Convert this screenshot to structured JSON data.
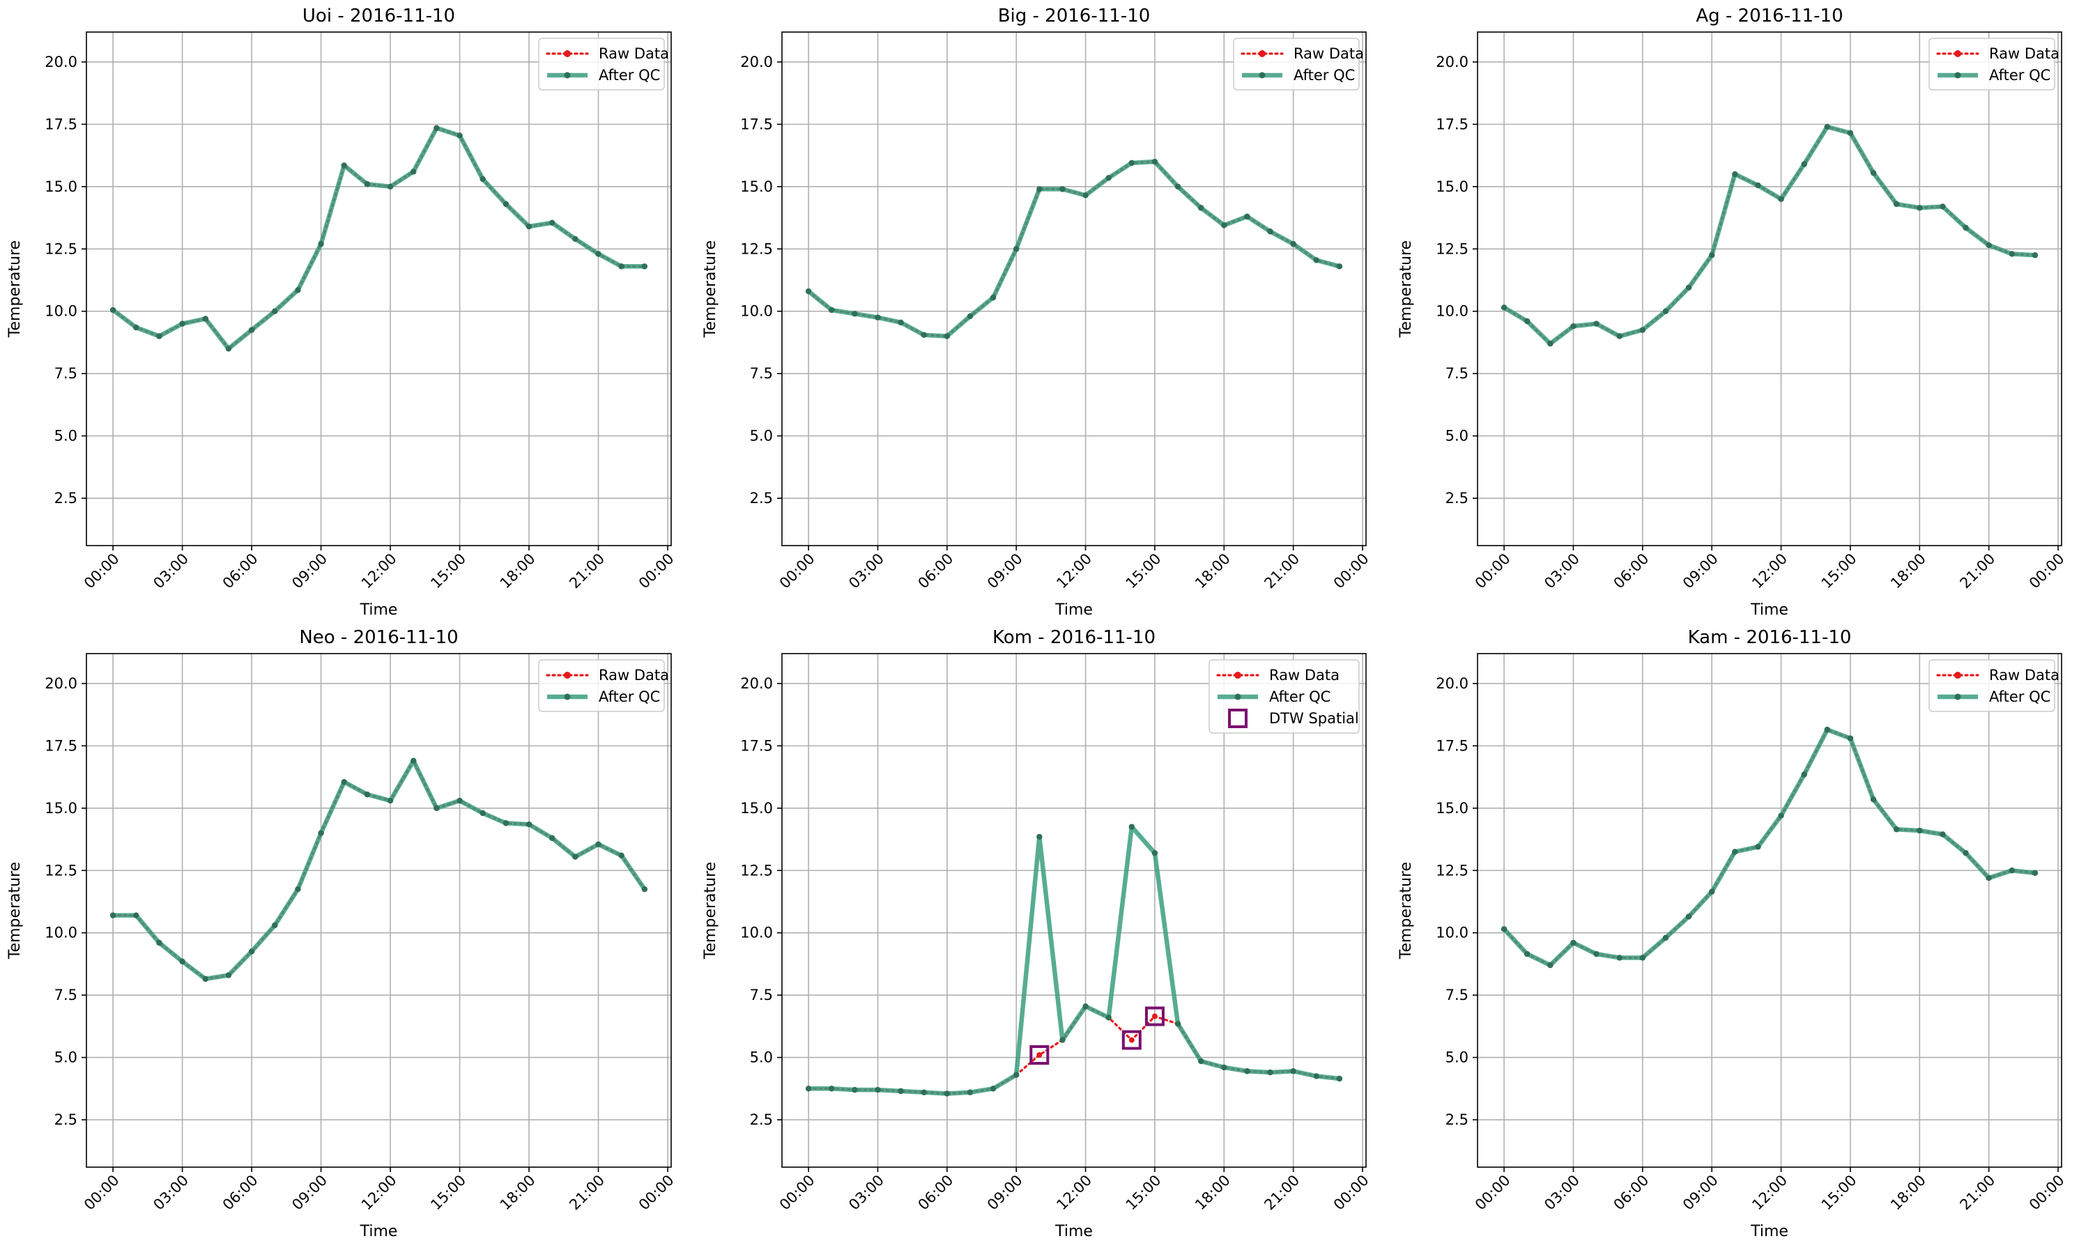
{
  "colors": {
    "raw_data": "#e41a1c",
    "after_qc": "#3a9d7f",
    "after_qc_marker": "#2f6f58",
    "dtw_spatial": "#7a0f6f",
    "grid": "#b0b0b0"
  },
  "chart_data": [
    {
      "type": "line",
      "title": "Uoi - 2016-11-10",
      "xlabel": "Time",
      "ylabel": "Temperature",
      "ylim": [
        0.6,
        21.2
      ],
      "yticks": [
        "2.5",
        "5.0",
        "7.5",
        "10.0",
        "12.5",
        "15.0",
        "17.5",
        "20.0"
      ],
      "xticks": [
        "00:00",
        "03:00",
        "06:00",
        "09:00",
        "12:00",
        "15:00",
        "18:00",
        "21:00",
        "00:00"
      ],
      "grid": true,
      "legend_position": "upper right",
      "legend": [
        "Raw Data",
        "After QC"
      ],
      "x": [
        "00:00",
        "01:00",
        "02:00",
        "03:00",
        "04:00",
        "05:00",
        "06:00",
        "07:00",
        "08:00",
        "09:00",
        "10:00",
        "11:00",
        "12:00",
        "13:00",
        "14:00",
        "15:00",
        "16:00",
        "17:00",
        "18:00",
        "19:00",
        "20:00",
        "21:00",
        "22:00",
        "23:00"
      ],
      "series": [
        {
          "name": "Raw Data",
          "values": [
            10.05,
            9.35,
            9.0,
            9.5,
            9.7,
            8.5,
            9.25,
            10.0,
            10.85,
            12.7,
            15.85,
            15.1,
            15.0,
            15.6,
            17.35,
            17.05,
            15.3,
            14.3,
            13.4,
            13.55,
            12.9,
            12.3,
            11.8,
            11.8
          ]
        },
        {
          "name": "After QC",
          "values": [
            10.05,
            9.35,
            9.0,
            9.5,
            9.7,
            8.5,
            9.25,
            10.0,
            10.85,
            12.7,
            15.85,
            15.1,
            15.0,
            15.6,
            17.35,
            17.05,
            15.3,
            14.3,
            13.4,
            13.55,
            12.9,
            12.3,
            11.8,
            11.8
          ]
        }
      ]
    },
    {
      "type": "line",
      "title": "Big - 2016-11-10",
      "xlabel": "Time",
      "ylabel": "Temperature",
      "ylim": [
        0.6,
        21.2
      ],
      "yticks": [
        "2.5",
        "5.0",
        "7.5",
        "10.0",
        "12.5",
        "15.0",
        "17.5",
        "20.0"
      ],
      "xticks": [
        "00:00",
        "03:00",
        "06:00",
        "09:00",
        "12:00",
        "15:00",
        "18:00",
        "21:00",
        "00:00"
      ],
      "grid": true,
      "legend_position": "upper right",
      "legend": [
        "Raw Data",
        "After QC"
      ],
      "x": [
        "00:00",
        "01:00",
        "02:00",
        "03:00",
        "04:00",
        "05:00",
        "06:00",
        "07:00",
        "08:00",
        "09:00",
        "10:00",
        "11:00",
        "12:00",
        "13:00",
        "14:00",
        "15:00",
        "16:00",
        "17:00",
        "18:00",
        "19:00",
        "20:00",
        "21:00",
        "22:00",
        "23:00"
      ],
      "series": [
        {
          "name": "Raw Data",
          "values": [
            10.8,
            10.05,
            9.9,
            9.75,
            9.55,
            9.05,
            9.0,
            9.8,
            10.55,
            12.5,
            14.9,
            14.9,
            14.65,
            15.35,
            15.95,
            16.0,
            15.0,
            14.15,
            13.45,
            13.8,
            13.2,
            12.7,
            12.05,
            11.8
          ]
        },
        {
          "name": "After QC",
          "values": [
            10.8,
            10.05,
            9.9,
            9.75,
            9.55,
            9.05,
            9.0,
            9.8,
            10.55,
            12.5,
            14.9,
            14.9,
            14.65,
            15.35,
            15.95,
            16.0,
            15.0,
            14.15,
            13.45,
            13.8,
            13.2,
            12.7,
            12.05,
            11.8
          ]
        }
      ]
    },
    {
      "type": "line",
      "title": "Ag - 2016-11-10",
      "xlabel": "Time",
      "ylabel": "Temperature",
      "ylim": [
        0.6,
        21.2
      ],
      "yticks": [
        "2.5",
        "5.0",
        "7.5",
        "10.0",
        "12.5",
        "15.0",
        "17.5",
        "20.0"
      ],
      "xticks": [
        "00:00",
        "03:00",
        "06:00",
        "09:00",
        "12:00",
        "15:00",
        "18:00",
        "21:00",
        "00:00"
      ],
      "grid": true,
      "legend_position": "upper right",
      "legend": [
        "Raw Data",
        "After QC"
      ],
      "x": [
        "00:00",
        "01:00",
        "02:00",
        "03:00",
        "04:00",
        "05:00",
        "06:00",
        "07:00",
        "08:00",
        "09:00",
        "10:00",
        "11:00",
        "12:00",
        "13:00",
        "14:00",
        "15:00",
        "16:00",
        "17:00",
        "18:00",
        "19:00",
        "20:00",
        "21:00",
        "22:00",
        "23:00"
      ],
      "series": [
        {
          "name": "Raw Data",
          "values": [
            10.15,
            9.6,
            8.7,
            9.4,
            9.5,
            9.0,
            9.25,
            10.0,
            10.95,
            12.25,
            15.5,
            15.05,
            14.5,
            15.9,
            17.4,
            17.15,
            15.55,
            14.3,
            14.15,
            14.2,
            13.35,
            12.65,
            12.3,
            12.25
          ]
        },
        {
          "name": "After QC",
          "values": [
            10.15,
            9.6,
            8.7,
            9.4,
            9.5,
            9.0,
            9.25,
            10.0,
            10.95,
            12.25,
            15.5,
            15.05,
            14.5,
            15.9,
            17.4,
            17.15,
            15.55,
            14.3,
            14.15,
            14.2,
            13.35,
            12.65,
            12.3,
            12.25
          ]
        }
      ]
    },
    {
      "type": "line",
      "title": "Neo - 2016-11-10",
      "xlabel": "Time",
      "ylabel": "Temperature",
      "ylim": [
        0.6,
        21.2
      ],
      "yticks": [
        "2.5",
        "5.0",
        "7.5",
        "10.0",
        "12.5",
        "15.0",
        "17.5",
        "20.0"
      ],
      "xticks": [
        "00:00",
        "03:00",
        "06:00",
        "09:00",
        "12:00",
        "15:00",
        "18:00",
        "21:00",
        "00:00"
      ],
      "grid": true,
      "legend_position": "upper right",
      "legend": [
        "Raw Data",
        "After QC"
      ],
      "x": [
        "00:00",
        "01:00",
        "02:00",
        "03:00",
        "04:00",
        "05:00",
        "06:00",
        "07:00",
        "08:00",
        "09:00",
        "10:00",
        "11:00",
        "12:00",
        "13:00",
        "14:00",
        "15:00",
        "16:00",
        "17:00",
        "18:00",
        "19:00",
        "20:00",
        "21:00",
        "22:00",
        "23:00"
      ],
      "series": [
        {
          "name": "Raw Data",
          "values": [
            10.7,
            10.7,
            9.6,
            8.85,
            8.15,
            8.3,
            9.25,
            10.3,
            11.75,
            14.0,
            16.05,
            15.55,
            15.3,
            16.9,
            15.0,
            15.3,
            14.8,
            14.4,
            14.35,
            13.8,
            13.05,
            13.55,
            13.1,
            11.75
          ]
        },
        {
          "name": "After QC",
          "values": [
            10.7,
            10.7,
            9.6,
            8.85,
            8.15,
            8.3,
            9.25,
            10.3,
            11.75,
            14.0,
            16.05,
            15.55,
            15.3,
            16.9,
            15.0,
            15.3,
            14.8,
            14.4,
            14.35,
            13.8,
            13.05,
            13.55,
            13.1,
            11.75
          ]
        }
      ]
    },
    {
      "type": "line",
      "title": "Kom - 2016-11-10",
      "xlabel": "Time",
      "ylabel": "Temperature",
      "ylim": [
        0.6,
        21.2
      ],
      "yticks": [
        "2.5",
        "5.0",
        "7.5",
        "10.0",
        "12.5",
        "15.0",
        "17.5",
        "20.0"
      ],
      "xticks": [
        "00:00",
        "03:00",
        "06:00",
        "09:00",
        "12:00",
        "15:00",
        "18:00",
        "21:00",
        "00:00"
      ],
      "grid": true,
      "legend_position": "upper right",
      "legend": [
        "Raw Data",
        "After QC",
        "DTW Spatial"
      ],
      "x": [
        "00:00",
        "01:00",
        "02:00",
        "03:00",
        "04:00",
        "05:00",
        "06:00",
        "07:00",
        "08:00",
        "09:00",
        "10:00",
        "11:00",
        "12:00",
        "13:00",
        "14:00",
        "15:00",
        "16:00",
        "17:00",
        "18:00",
        "19:00",
        "20:00",
        "21:00",
        "22:00",
        "23:00"
      ],
      "series": [
        {
          "name": "Raw Data",
          "values": [
            3.75,
            3.75,
            3.7,
            3.7,
            3.65,
            3.6,
            3.55,
            3.6,
            3.75,
            4.3,
            5.1,
            5.7,
            7.05,
            6.6,
            5.7,
            6.65,
            6.35,
            4.85,
            4.6,
            4.45,
            4.4,
            4.45,
            4.25,
            4.15
          ]
        },
        {
          "name": "After QC",
          "values": [
            3.75,
            3.75,
            3.7,
            3.7,
            3.65,
            3.6,
            3.55,
            3.6,
            3.75,
            4.3,
            13.85,
            5.7,
            7.05,
            6.6,
            14.25,
            13.2,
            6.35,
            4.85,
            4.6,
            4.45,
            4.4,
            4.45,
            4.25,
            4.15
          ]
        }
      ],
      "flagged": {
        "name": "DTW Spatial",
        "x": [
          "10:00",
          "14:00",
          "15:00"
        ],
        "values": [
          5.1,
          5.7,
          6.65
        ]
      }
    },
    {
      "type": "line",
      "title": "Kam - 2016-11-10",
      "xlabel": "Time",
      "ylabel": "Temperature",
      "ylim": [
        0.6,
        21.2
      ],
      "yticks": [
        "2.5",
        "5.0",
        "7.5",
        "10.0",
        "12.5",
        "15.0",
        "17.5",
        "20.0"
      ],
      "xticks": [
        "00:00",
        "03:00",
        "06:00",
        "09:00",
        "12:00",
        "15:00",
        "18:00",
        "21:00",
        "00:00"
      ],
      "grid": true,
      "legend_position": "upper right",
      "legend": [
        "Raw Data",
        "After QC"
      ],
      "x": [
        "00:00",
        "01:00",
        "02:00",
        "03:00",
        "04:00",
        "05:00",
        "06:00",
        "07:00",
        "08:00",
        "09:00",
        "10:00",
        "11:00",
        "12:00",
        "13:00",
        "14:00",
        "15:00",
        "16:00",
        "17:00",
        "18:00",
        "19:00",
        "20:00",
        "21:00",
        "22:00",
        "23:00"
      ],
      "series": [
        {
          "name": "Raw Data",
          "values": [
            10.15,
            9.15,
            8.7,
            9.6,
            9.15,
            9.0,
            9.0,
            9.8,
            10.65,
            11.65,
            13.25,
            13.45,
            14.7,
            16.35,
            18.15,
            17.8,
            15.35,
            14.15,
            14.1,
            13.95,
            13.2,
            12.2,
            12.5,
            12.4
          ]
        },
        {
          "name": "After QC",
          "values": [
            10.15,
            9.15,
            8.7,
            9.6,
            9.15,
            9.0,
            9.0,
            9.8,
            10.65,
            11.65,
            13.25,
            13.45,
            14.7,
            16.35,
            18.15,
            17.8,
            15.35,
            14.15,
            14.1,
            13.95,
            13.2,
            12.2,
            12.5,
            12.4
          ]
        }
      ]
    }
  ]
}
